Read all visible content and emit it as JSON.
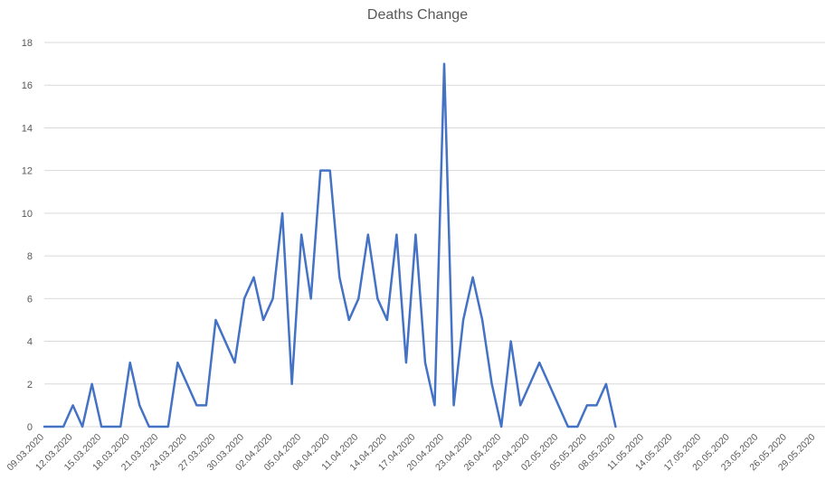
{
  "chart_data": {
    "type": "line",
    "title": "Deaths Change",
    "xlabel": "",
    "ylabel": "",
    "ylim": [
      0,
      18
    ],
    "y_ticks": [
      0,
      2,
      4,
      6,
      8,
      10,
      12,
      14,
      16,
      18
    ],
    "grid": "horizontal",
    "legend": "none",
    "x_tick_labels": [
      "09.03.2020",
      "12.03.2020",
      "15.03.2020",
      "18.03.2020",
      "21.03.2020",
      "24.03.2020",
      "27.03.2020",
      "30.03.2020",
      "02.04.2020",
      "05.04.2020",
      "08.04.2020",
      "11.04.2020",
      "14.04.2020",
      "17.04.2020",
      "20.04.2020",
      "23.04.2020",
      "26.04.2020",
      "29.04.2020",
      "02.05.2020",
      "05.05.2020",
      "08.05.2020",
      "11.05.2020",
      "14.05.2020",
      "17.05.2020",
      "20.05.2020",
      "23.05.2020",
      "26.05.2020",
      "29.05.2020"
    ],
    "x_range": [
      "09.03.2020",
      "30.05.2020"
    ],
    "series": [
      {
        "color": "#4472C4",
        "points": [
          {
            "x": "09.03.2020",
            "y": 0
          },
          {
            "x": "10.03.2020",
            "y": 0
          },
          {
            "x": "11.03.2020",
            "y": 0
          },
          {
            "x": "12.03.2020",
            "y": 1
          },
          {
            "x": "13.03.2020",
            "y": 0
          },
          {
            "x": "14.03.2020",
            "y": 2
          },
          {
            "x": "15.03.2020",
            "y": 0
          },
          {
            "x": "16.03.2020",
            "y": 0
          },
          {
            "x": "17.03.2020",
            "y": 0
          },
          {
            "x": "18.03.2020",
            "y": 3
          },
          {
            "x": "19.03.2020",
            "y": 1
          },
          {
            "x": "20.03.2020",
            "y": 0
          },
          {
            "x": "21.03.2020",
            "y": 0
          },
          {
            "x": "22.03.2020",
            "y": 0
          },
          {
            "x": "23.03.2020",
            "y": 3
          },
          {
            "x": "24.03.2020",
            "y": 2
          },
          {
            "x": "25.03.2020",
            "y": 1
          },
          {
            "x": "26.03.2020",
            "y": 1
          },
          {
            "x": "27.03.2020",
            "y": 5
          },
          {
            "x": "28.03.2020",
            "y": 4
          },
          {
            "x": "29.03.2020",
            "y": 3
          },
          {
            "x": "30.03.2020",
            "y": 6
          },
          {
            "x": "31.03.2020",
            "y": 7
          },
          {
            "x": "01.04.2020",
            "y": 5
          },
          {
            "x": "02.04.2020",
            "y": 6
          },
          {
            "x": "03.04.2020",
            "y": 10
          },
          {
            "x": "04.04.2020",
            "y": 2
          },
          {
            "x": "05.04.2020",
            "y": 9
          },
          {
            "x": "06.04.2020",
            "y": 6
          },
          {
            "x": "07.04.2020",
            "y": 12
          },
          {
            "x": "08.04.2020",
            "y": 12
          },
          {
            "x": "09.04.2020",
            "y": 7
          },
          {
            "x": "10.04.2020",
            "y": 5
          },
          {
            "x": "11.04.2020",
            "y": 6
          },
          {
            "x": "12.04.2020",
            "y": 9
          },
          {
            "x": "13.04.2020",
            "y": 6
          },
          {
            "x": "14.04.2020",
            "y": 5
          },
          {
            "x": "15.04.2020",
            "y": 9
          },
          {
            "x": "16.04.2020",
            "y": 3
          },
          {
            "x": "17.04.2020",
            "y": 9
          },
          {
            "x": "18.04.2020",
            "y": 3
          },
          {
            "x": "19.04.2020",
            "y": 1
          },
          {
            "x": "20.04.2020",
            "y": 17
          },
          {
            "x": "21.04.2020",
            "y": 1
          },
          {
            "x": "22.04.2020",
            "y": 5
          },
          {
            "x": "23.04.2020",
            "y": 7
          },
          {
            "x": "24.04.2020",
            "y": 5
          },
          {
            "x": "25.04.2020",
            "y": 2
          },
          {
            "x": "26.04.2020",
            "y": 0
          },
          {
            "x": "27.04.2020",
            "y": 4
          },
          {
            "x": "28.04.2020",
            "y": 1
          },
          {
            "x": "29.04.2020",
            "y": 2
          },
          {
            "x": "30.04.2020",
            "y": 3
          },
          {
            "x": "01.05.2020",
            "y": 2
          },
          {
            "x": "02.05.2020",
            "y": 1
          },
          {
            "x": "03.05.2020",
            "y": 0
          },
          {
            "x": "04.05.2020",
            "y": 0
          },
          {
            "x": "05.05.2020",
            "y": 1
          },
          {
            "x": "06.05.2020",
            "y": 1
          },
          {
            "x": "07.05.2020",
            "y": 2
          },
          {
            "x": "08.05.2020",
            "y": 0
          }
        ]
      }
    ]
  }
}
